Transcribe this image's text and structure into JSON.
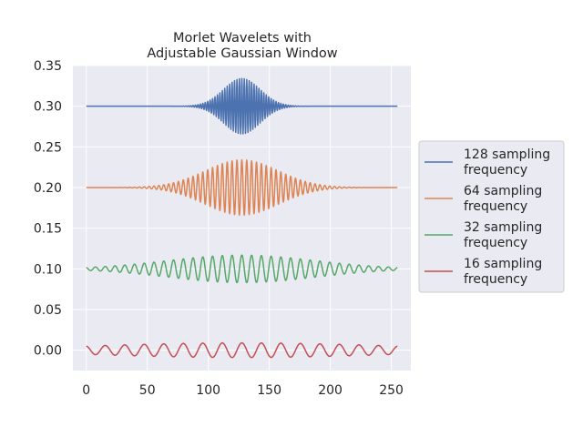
{
  "chart_data": {
    "type": "line",
    "title": [
      "Morlet Wavelets with",
      "Adjustable Gaussian Window"
    ],
    "xlabel": "",
    "ylabel": "",
    "xlim": [
      -11,
      266
    ],
    "ylim": [
      -0.025,
      0.35
    ],
    "x_ticks": [
      "0",
      "50",
      "100",
      "150",
      "200",
      "250"
    ],
    "x_tick_values": [
      0,
      50,
      100,
      150,
      200,
      250
    ],
    "y_ticks": [
      "0.00",
      "0.05",
      "0.10",
      "0.15",
      "0.20",
      "0.25",
      "0.30",
      "0.35"
    ],
    "y_tick_values": [
      0,
      0.05,
      0.1,
      0.15,
      0.2,
      0.25,
      0.3,
      0.35
    ],
    "grid": true,
    "legend_position": "right-outside",
    "background": "#eaeaf2",
    "grid_color": "#ffffff",
    "x_range": [
      0,
      255
    ],
    "center": 127.5,
    "series": [
      {
        "name": "128 sampling frequency",
        "label_lines": [
          "128 sampling",
          "frequency"
        ],
        "color": "#4c72b0",
        "offset": 0.3,
        "amplitude": 0.034,
        "period": 2,
        "sigma": 15
      },
      {
        "name": "64 sampling frequency",
        "label_lines": [
          "64 sampling",
          "frequency"
        ],
        "color": "#dd8452",
        "offset": 0.2,
        "amplitude": 0.034,
        "period": 4,
        "sigma": 30
      },
      {
        "name": "32 sampling frequency",
        "label_lines": [
          "32 sampling",
          "frequency"
        ],
        "color": "#55a868",
        "offset": 0.1,
        "amplitude": 0.017,
        "period": 8,
        "sigma": 60
      },
      {
        "name": "16 sampling frequency",
        "label_lines": [
          "16 sampling",
          "frequency"
        ],
        "color": "#c44e52",
        "offset": 0.0,
        "amplitude": 0.009,
        "period": 16,
        "sigma": 120
      }
    ]
  }
}
